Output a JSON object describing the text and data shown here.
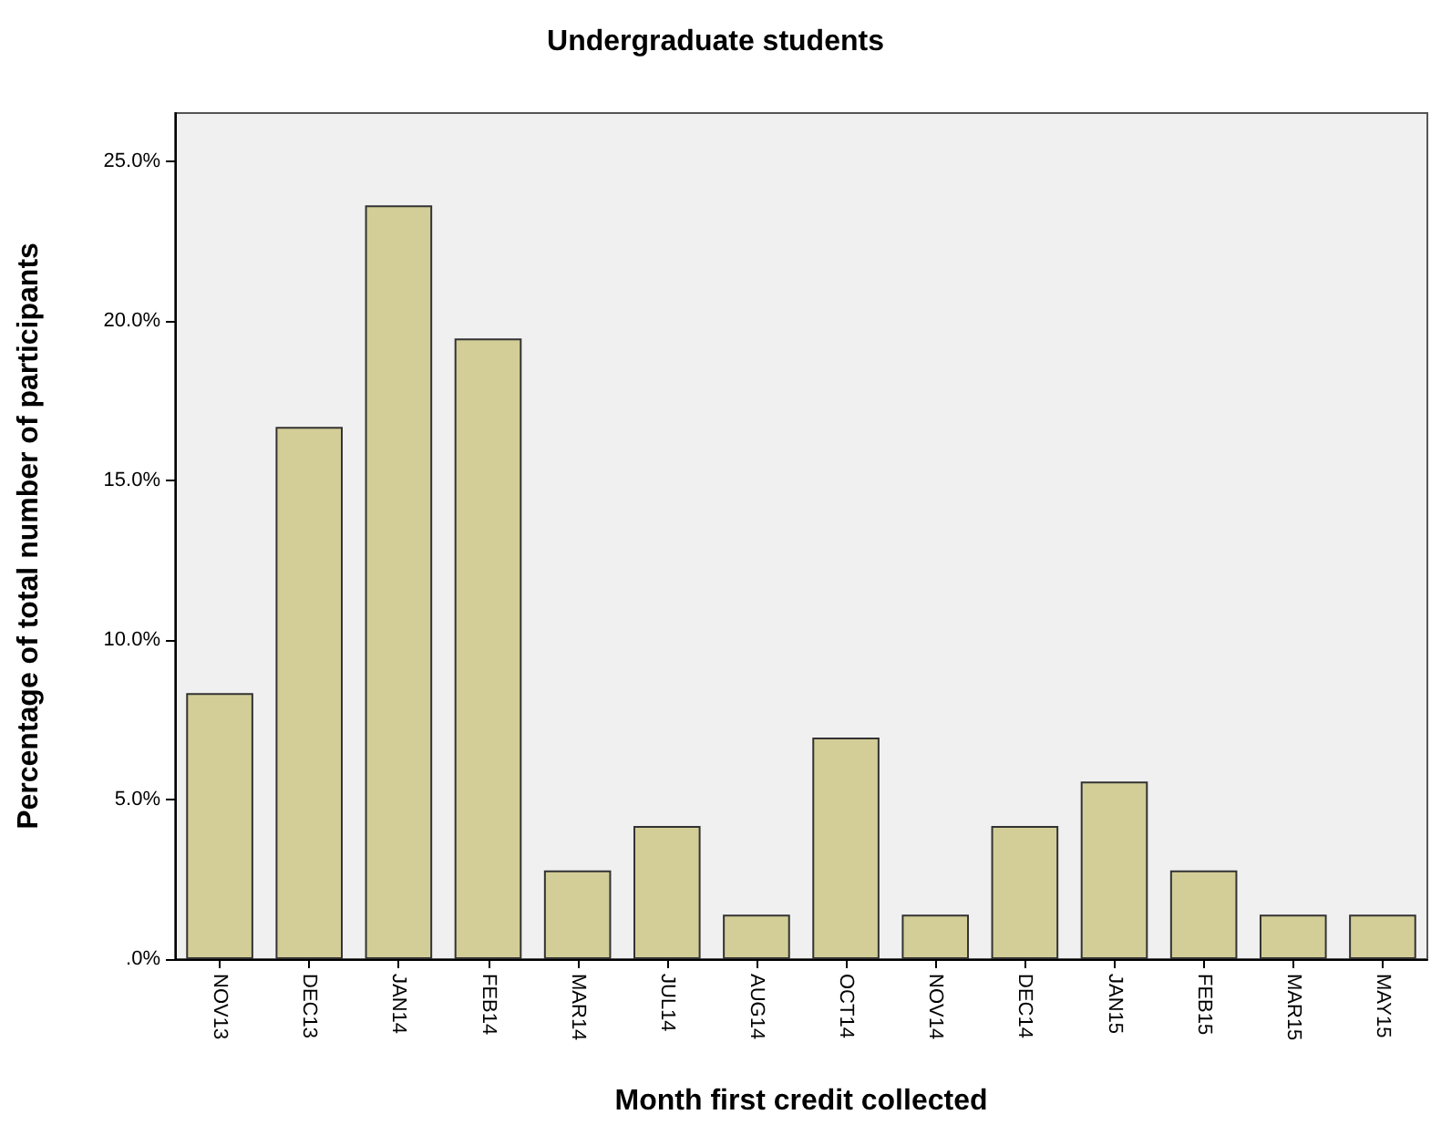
{
  "chart_data": {
    "type": "bar",
    "title": "Undergraduate students",
    "xlabel": "Month first credit collected",
    "ylabel": "Percentage of total number of participants",
    "categories": [
      "NOV13",
      "DEC13",
      "JAN14",
      "FEB14",
      "MAR14",
      "JUL14",
      "AUG14",
      "OCT14",
      "NOV14",
      "DEC14",
      "JAN15",
      "FEB15",
      "MAR15",
      "MAY15"
    ],
    "values": [
      8.33,
      16.67,
      23.61,
      19.44,
      2.78,
      4.17,
      1.39,
      6.94,
      1.39,
      4.17,
      5.56,
      2.78,
      1.39,
      1.39
    ],
    "color": "#d3ce97",
    "ylim": [
      0,
      26.5
    ],
    "yticks": [
      {
        "value": 0,
        "label": ".0%"
      },
      {
        "value": 5,
        "label": "5.0%"
      },
      {
        "value": 10,
        "label": "10.0%"
      },
      {
        "value": 15,
        "label": "15.0%"
      },
      {
        "value": 20,
        "label": "20.0%"
      },
      {
        "value": 25,
        "label": "25.0%"
      }
    ],
    "grid": false
  }
}
